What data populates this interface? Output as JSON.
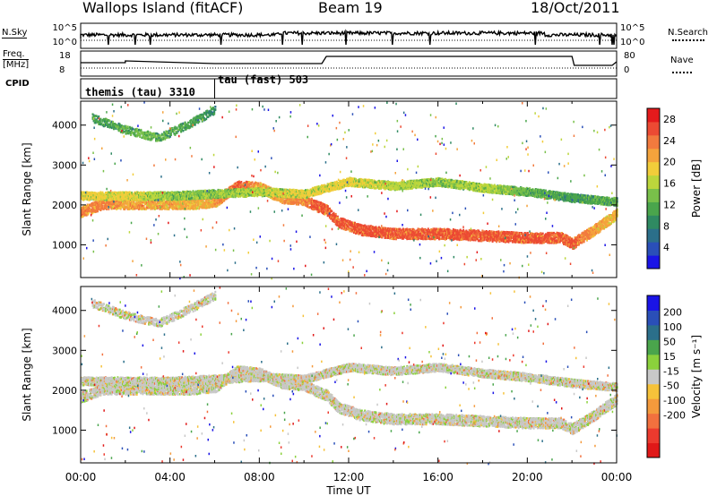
{
  "header": {
    "site": "Wallops Island (fitACF)",
    "beam": "Beam 19",
    "date": "18/Oct/2011"
  },
  "params_panel": {
    "nsky_label": "N.Sky",
    "nsearch_label": "N.Search",
    "noise_ticks": [
      "10^5",
      "10^0"
    ],
    "noise_ticks_right": [
      "10^5",
      "10^0"
    ],
    "freq_label_1": "Freq.",
    "freq_label_2": "[MHz]",
    "freq_ticks": [
      "18",
      "8"
    ],
    "nave_label": "Nave",
    "nave_ticks": [
      "80",
      "0"
    ],
    "cpid_label": "CPID",
    "cpid_segments": [
      {
        "name": "themis (tau) 3310",
        "start_hr": 0,
        "end_hr": 6
      },
      {
        "name": "tau (fast) 503",
        "start_hr": 6,
        "end_hr": 24
      }
    ]
  },
  "chart_data": [
    {
      "type": "heatmap",
      "title": "",
      "ylabel": "Slant Range [km]",
      "xlabel": "",
      "xlim_hr": [
        0,
        24
      ],
      "ylim_km": [
        180,
        4600
      ],
      "yticks": [
        1000,
        2000,
        3000,
        4000
      ],
      "colorbar": {
        "label": "Power [dB]",
        "ticks": [
          4,
          8,
          12,
          16,
          20,
          24,
          28
        ],
        "range": [
          0,
          30
        ],
        "colors": [
          "#1a14e6",
          "#2a4fb8",
          "#2b6f8a",
          "#2f8a62",
          "#4aa54c",
          "#79c04a",
          "#bcd63c",
          "#f2cd3a",
          "#f4a33c",
          "#f27a3e",
          "#ec4a33",
          "#e41a1c"
        ]
      },
      "echo_bands": [
        {
          "desc": "F-region band",
          "x": [
            0.0,
            1.0,
            2.0,
            4.0,
            5.0,
            6.0,
            7.0,
            8.0,
            9.0,
            10.0,
            10.5,
            11.0,
            11.5,
            12.5,
            14.0,
            16.0,
            18.0,
            20.0,
            21.5,
            22.0,
            23.0,
            24.0
          ],
          "y": [
            1850,
            2050,
            2050,
            2050,
            2050,
            2100,
            2500,
            2450,
            2200,
            2150,
            2000,
            1900,
            1600,
            1400,
            1300,
            1300,
            1250,
            1200,
            1200,
            1050,
            1400,
            1800
          ],
          "power": [
            26,
            26,
            24,
            24,
            22,
            24,
            28,
            24,
            24,
            26,
            28,
            28,
            28,
            28,
            28,
            28,
            28,
            28,
            28,
            28,
            24,
            22
          ]
        },
        {
          "desc": "upper band",
          "x": [
            0.0,
            2.0,
            4.0,
            6.0,
            8.0,
            10.0,
            12.0,
            14.0,
            16.0,
            18.0,
            20.0,
            22.0,
            24.0
          ],
          "y": [
            2250,
            2250,
            2250,
            2300,
            2350,
            2300,
            2600,
            2500,
            2600,
            2450,
            2350,
            2200,
            2100
          ],
          "power": [
            20,
            20,
            16,
            16,
            18,
            20,
            20,
            18,
            16,
            18,
            14,
            12,
            14
          ]
        },
        {
          "desc": "far range",
          "x": [
            0.5,
            2.0,
            3.5,
            5.0,
            6.0
          ],
          "y": [
            4200,
            3900,
            3700,
            4100,
            4400
          ],
          "power": [
            12,
            14,
            14,
            12,
            10
          ]
        }
      ]
    },
    {
      "type": "heatmap",
      "title": "",
      "ylabel": "Slant Range [km]",
      "xlabel": "Time UT",
      "xlim_hr": [
        0,
        24
      ],
      "ylim_km": [
        180,
        4600
      ],
      "yticks": [
        1000,
        2000,
        3000,
        4000
      ],
      "xticks": [
        "00:00",
        "04:00",
        "08:00",
        "12:00",
        "16:00",
        "20:00",
        "00:00"
      ],
      "colorbar": {
        "label": "Velocity [m s⁻¹]",
        "ticks": [
          200,
          100,
          50,
          15,
          -15,
          -50,
          -100,
          -200
        ],
        "colors": [
          "#1a14e6",
          "#2a4fb8",
          "#2b6f8a",
          "#4aa54c",
          "#8bd13c",
          "#c8c8c8",
          "#f6c23a",
          "#f49a3c",
          "#f2703e",
          "#ec3a2e",
          "#e01818"
        ]
      }
    }
  ]
}
